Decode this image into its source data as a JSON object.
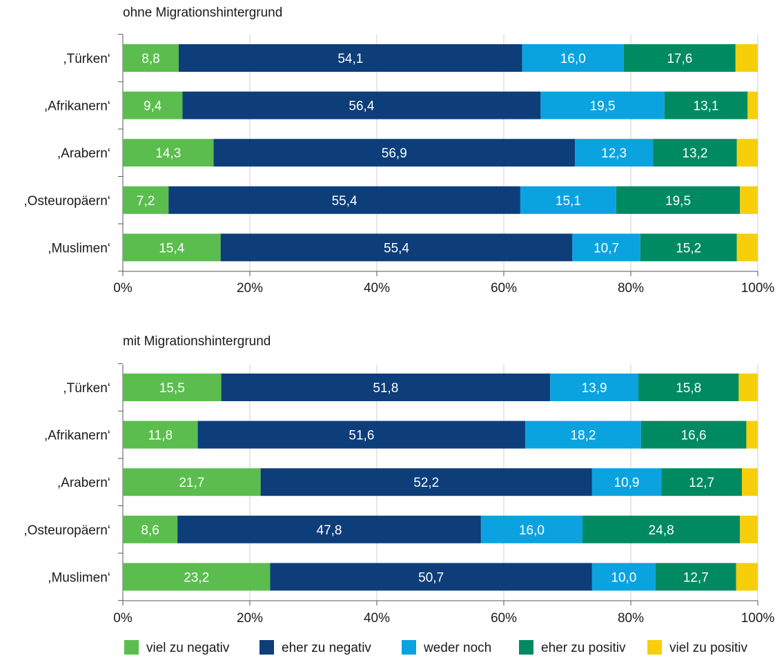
{
  "chart_data": {
    "type": "bar",
    "orientation": "horizontal-stacked-100",
    "xlim": [
      0,
      100
    ],
    "x_ticks": [
      "0%",
      "20%",
      "40%",
      "60%",
      "80%",
      "100%"
    ],
    "grid": true,
    "legend_position": "bottom",
    "categories": [
      ",Türken‘",
      ",Afrikanern‘",
      ",Arabern‘",
      ",Osteuropäern‘",
      ",Muslimen‘"
    ],
    "series_names": [
      "viel zu negativ",
      "eher zu negativ",
      "weder noch",
      "eher zu positiv",
      "viel zu positiv"
    ],
    "series_colors": [
      "#5bbd4e",
      "#0d3e7a",
      "#0aa3e0",
      "#008a62",
      "#f6cf0a"
    ],
    "panels": [
      {
        "title": "ohne Migrationshintergrund",
        "series": [
          {
            "name": "viel zu negativ",
            "values": [
              8.8,
              9.4,
              14.3,
              7.2,
              15.4
            ]
          },
          {
            "name": "eher zu negativ",
            "values": [
              54.1,
              56.4,
              56.9,
              55.4,
              55.4
            ]
          },
          {
            "name": "weder noch",
            "values": [
              16.0,
              19.5,
              12.3,
              15.1,
              10.7
            ]
          },
          {
            "name": "eher zu positiv",
            "values": [
              17.6,
              13.1,
              13.2,
              19.5,
              15.2
            ]
          },
          {
            "name": "viel zu positiv",
            "values": [
              3.5,
              1.6,
              3.3,
              2.8,
              3.3
            ]
          }
        ],
        "labels": [
          [
            "8,8",
            "9,4",
            "14,3",
            "7,2",
            "15,4"
          ],
          [
            "54,1",
            "56,4",
            "56,9",
            "55,4",
            "55,4"
          ],
          [
            "16,0",
            "19,5",
            "12,3",
            "15,1",
            "10,7"
          ],
          [
            "17,6",
            "13,1",
            "13,2",
            "19,5",
            "15,2"
          ],
          [
            "",
            "",
            "",
            "",
            ""
          ]
        ]
      },
      {
        "title": "mit Migrationshintergrund",
        "series": [
          {
            "name": "viel zu negativ",
            "values": [
              15.5,
              11.8,
              21.7,
              8.6,
              23.2
            ]
          },
          {
            "name": "eher zu negativ",
            "values": [
              51.8,
              51.6,
              52.2,
              47.8,
              50.7
            ]
          },
          {
            "name": "weder noch",
            "values": [
              13.9,
              18.2,
              10.9,
              16.0,
              10.0
            ]
          },
          {
            "name": "eher zu positiv",
            "values": [
              15.8,
              16.6,
              12.7,
              24.8,
              12.7
            ]
          },
          {
            "name": "viel zu positiv",
            "values": [
              3.0,
              1.8,
              2.5,
              2.8,
              3.4
            ]
          }
        ],
        "labels": [
          [
            "15,5",
            "11,8",
            "21,7",
            "8,6",
            "23,2"
          ],
          [
            "51,8",
            "51,6",
            "52,2",
            "47,8",
            "50,7"
          ],
          [
            "13,9",
            "18,2",
            "10,9",
            "16,0",
            "10,0"
          ],
          [
            "15,8",
            "16,6",
            "12,7",
            "24,8",
            "12,7"
          ],
          [
            "",
            "",
            "",
            "",
            ""
          ]
        ]
      }
    ]
  }
}
